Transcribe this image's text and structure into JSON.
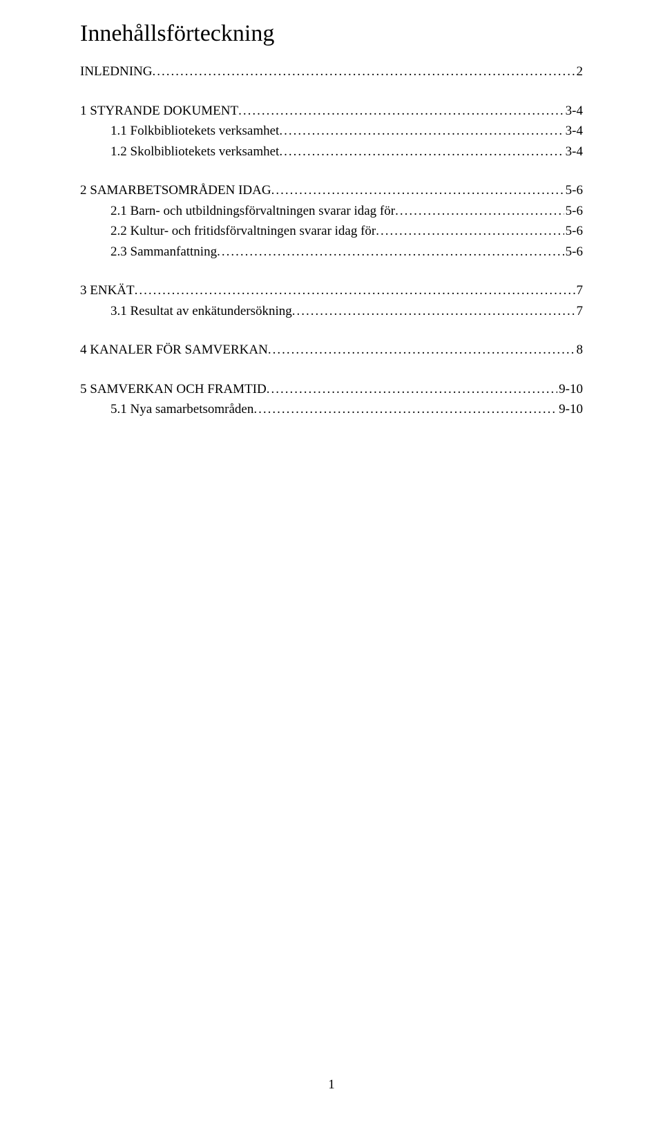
{
  "title": "Innehållsförteckning",
  "entries": [
    {
      "label": "INLEDNING",
      "page": "2",
      "sub": false,
      "gapBefore": false
    },
    {
      "label": "1 STYRANDE DOKUMENT",
      "page": "3-4",
      "sub": false,
      "gapBefore": true
    },
    {
      "label": "1.1 Folkbibliotekets verksamhet",
      "page": "3-4",
      "sub": true,
      "gapBefore": false
    },
    {
      "label": "1.2 Skolbibliotekets verksamhet",
      "page": "3-4",
      "sub": true,
      "gapBefore": false
    },
    {
      "label": "2 SAMARBETSOMRÅDEN IDAG",
      "page": "5-6",
      "sub": false,
      "gapBefore": true
    },
    {
      "label": "2.1 Barn- och utbildningsförvaltningen svarar idag för",
      "page": "5-6",
      "sub": true,
      "gapBefore": false
    },
    {
      "label": "2.2 Kultur- och fritidsförvaltningen  svarar idag för",
      "page": "5-6",
      "sub": true,
      "gapBefore": false
    },
    {
      "label": "2.3 Sammanfattning",
      "page": " 5-6",
      "sub": true,
      "gapBefore": false
    },
    {
      "label": "3 ENKÄT",
      "page": "7",
      "sub": false,
      "gapBefore": true
    },
    {
      "label": "3.1 Resultat av enkätundersökning",
      "page": "7",
      "sub": true,
      "gapBefore": false
    },
    {
      "label": "4 KANALER FÖR SAMVERKAN",
      "page": "8",
      "sub": false,
      "gapBefore": true
    },
    {
      "label": "5 SAMVERKAN OCH FRAMTID",
      "page": "9-10",
      "sub": false,
      "gapBefore": true
    },
    {
      "label": "5.1 Nya samarbetsområden",
      "page": "9-10",
      "sub": true,
      "gapBefore": false
    }
  ],
  "pageNumber": "1"
}
